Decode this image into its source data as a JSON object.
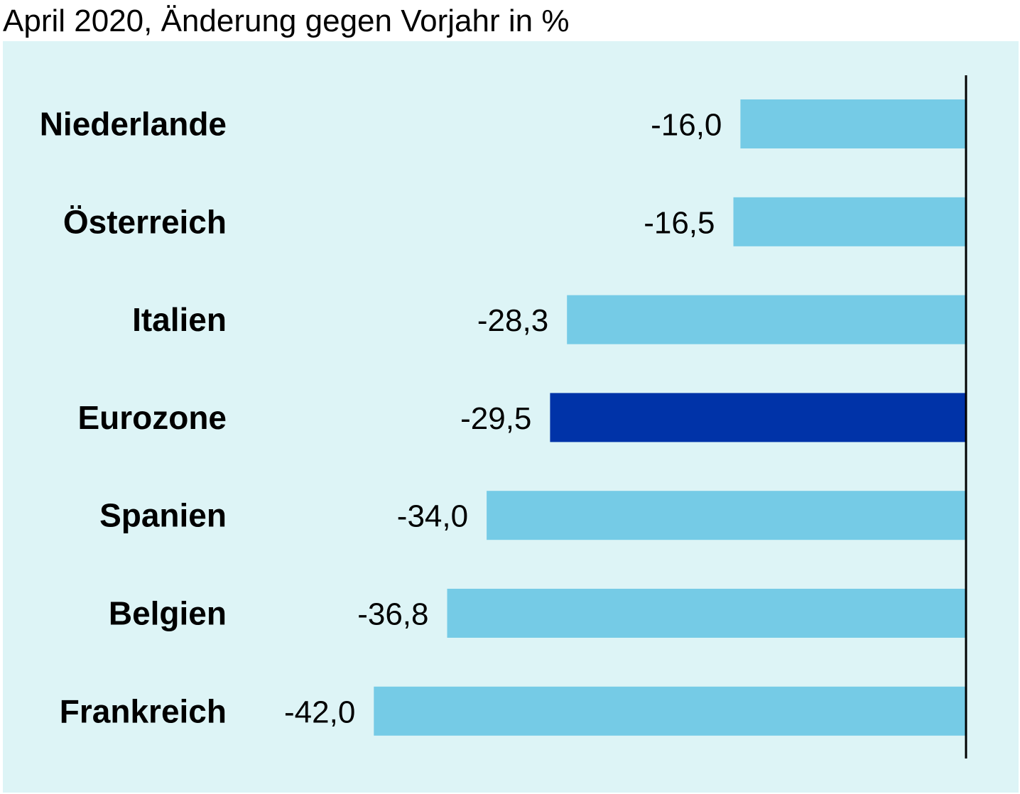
{
  "chart_data": {
    "type": "bar",
    "orientation": "horizontal",
    "title": "April 2020, Änderung gegen Vorjahr in %",
    "categories": [
      "Niederlande",
      "Österreich",
      "Italien",
      "Eurozone",
      "Spanien",
      "Belgien",
      "Frankreich"
    ],
    "values": [
      -16.0,
      -16.5,
      -28.3,
      -29.5,
      -34.0,
      -36.8,
      -42.0
    ],
    "value_labels": [
      "-16,0",
      "-16,5",
      "-28,3",
      "-29,5",
      "-34,0",
      "-36,8",
      "-42,0"
    ],
    "highlight_category": "Eurozone",
    "xlim": [
      -42.0,
      0
    ],
    "grid": false,
    "legend": "none",
    "colors": {
      "background": "#ddf4f6",
      "bar": "#75cbe6",
      "highlight_bar": "#0033a8",
      "axis": "#000000"
    }
  }
}
